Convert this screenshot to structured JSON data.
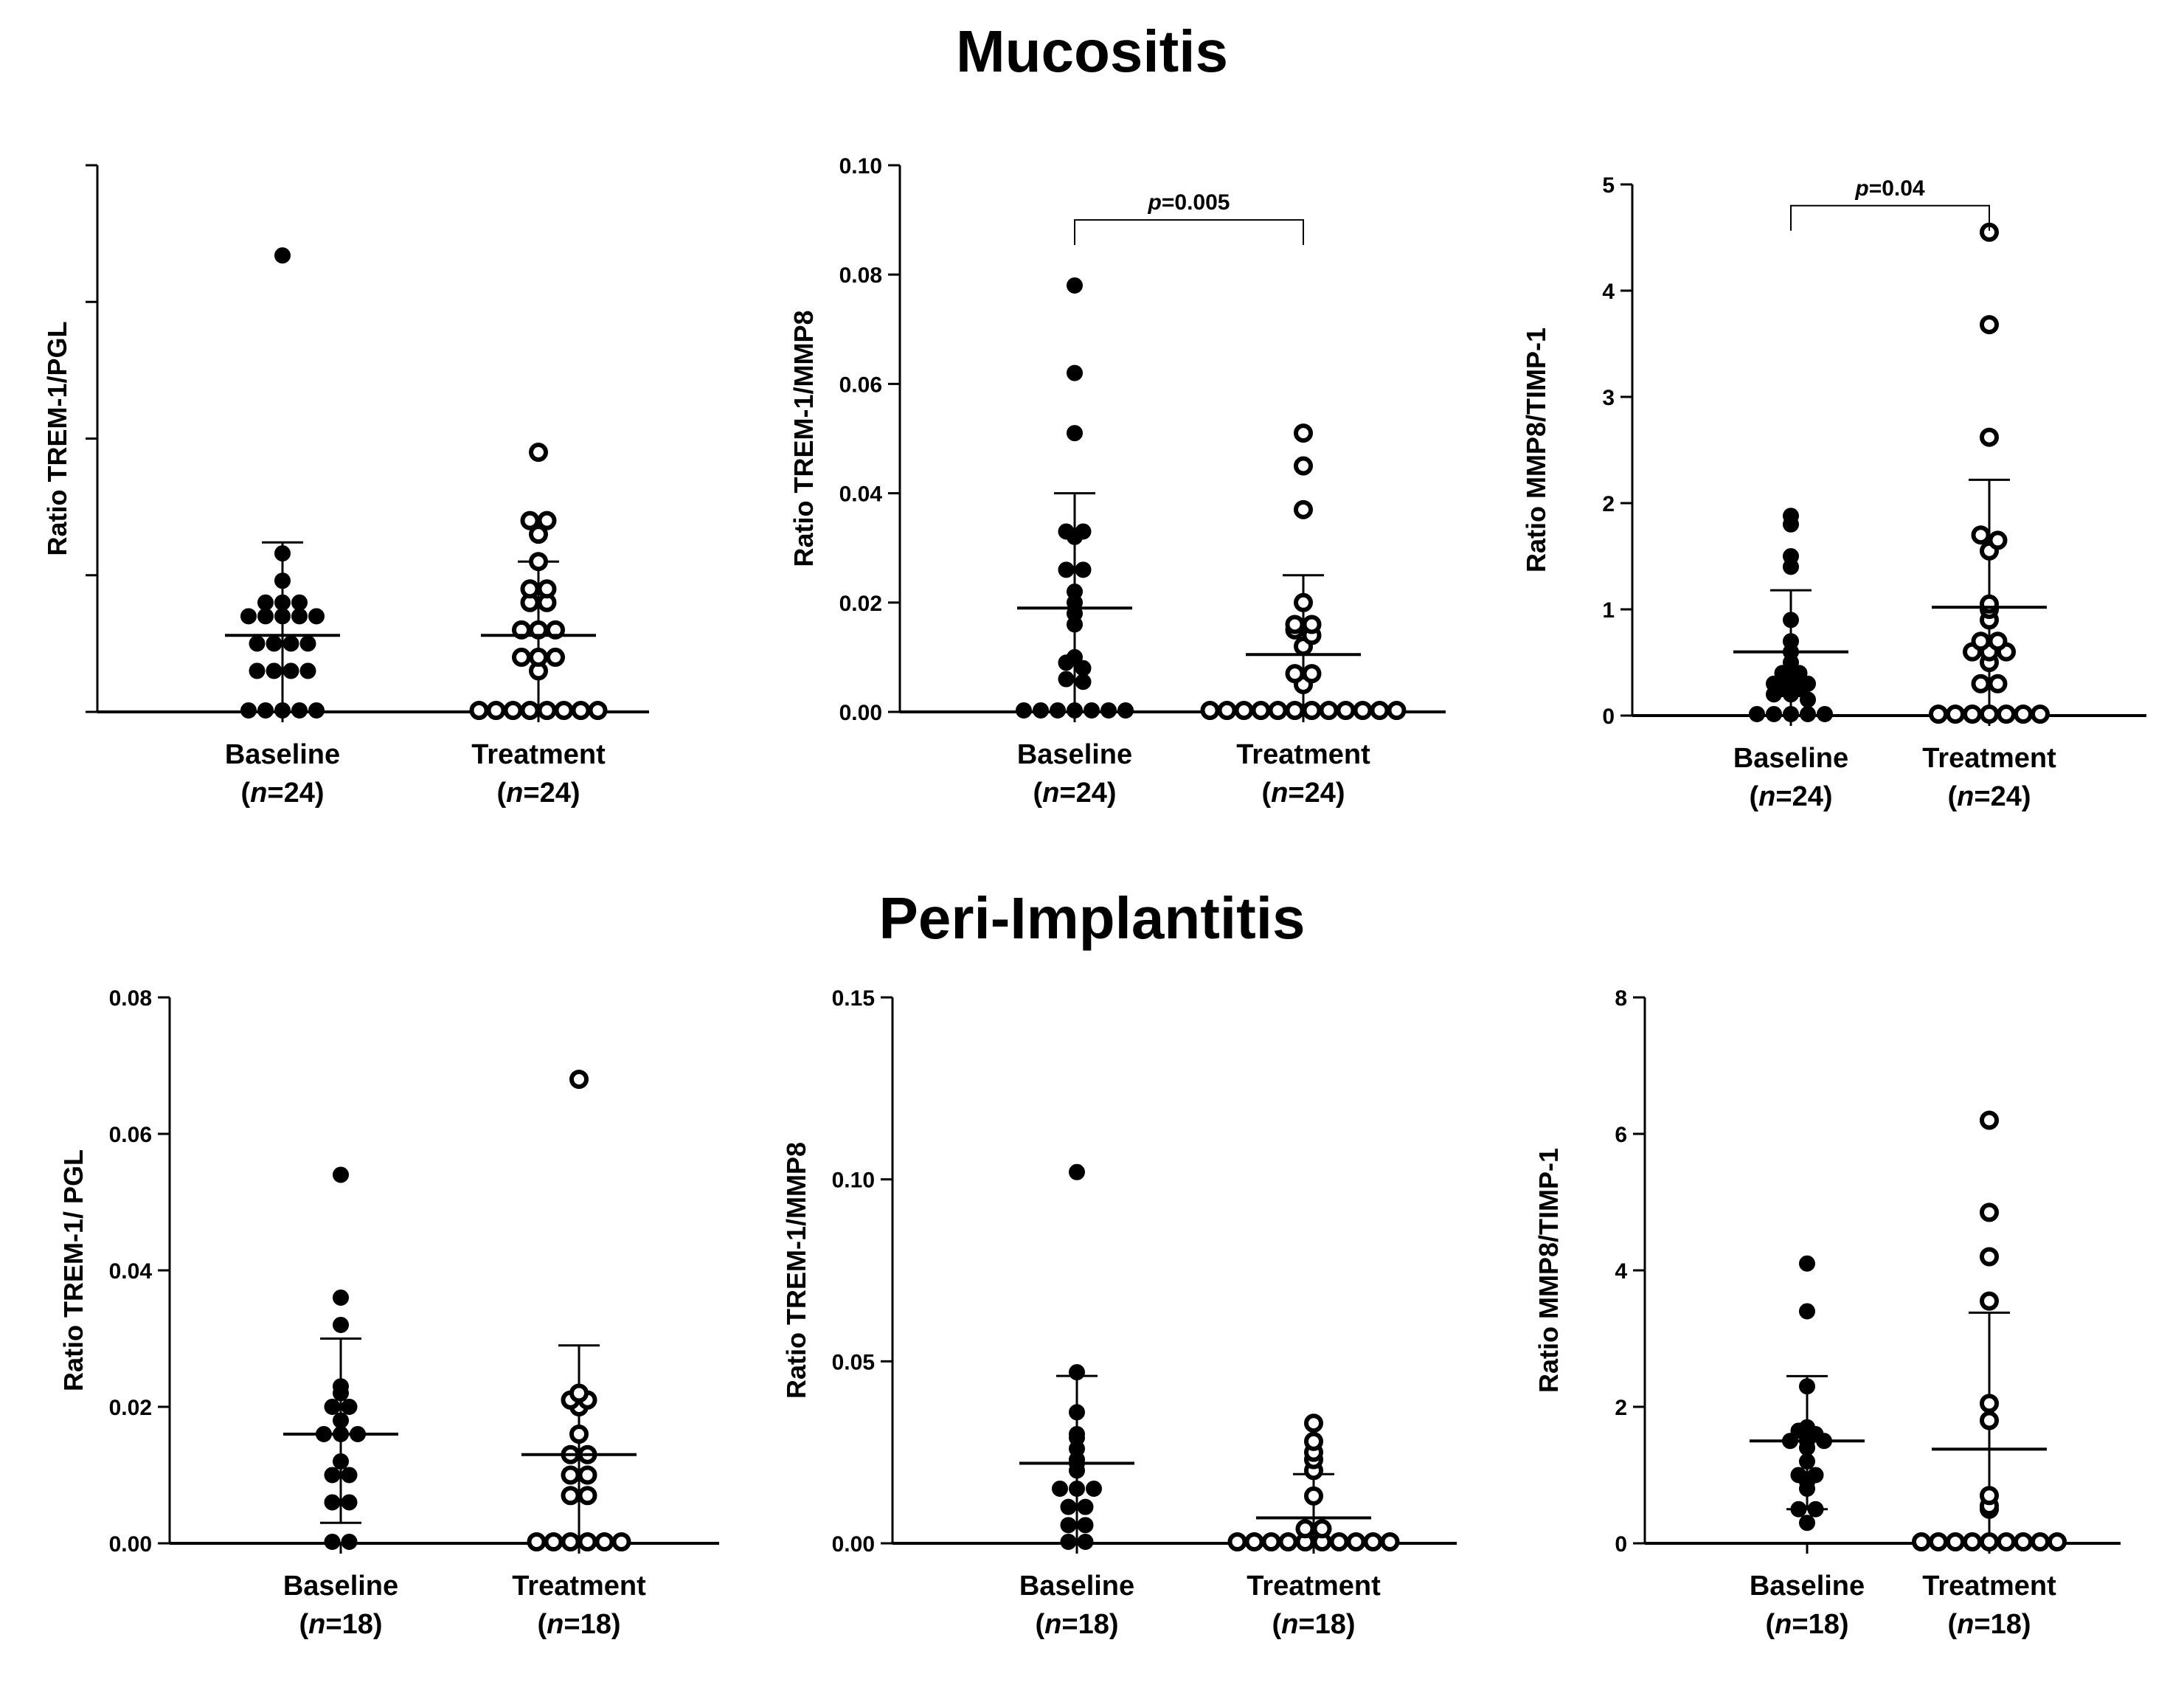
{
  "sections": {
    "top_title": "Mucositis",
    "bottom_title": "Peri-Implantitis"
  },
  "chart_data": [
    {
      "id": "p1",
      "type": "scatter",
      "section": "Mucositis",
      "ylabel": "Ratio TREM-1/PGL",
      "ylim": [
        0,
        0.2
      ],
      "yticks": [
        0,
        0.05,
        0.1,
        0.15,
        0.2
      ],
      "ytick_labels": false,
      "groups": [
        {
          "name": "Baseline",
          "n_label": "(n=24)",
          "n": "24",
          "filled": true,
          "mean": 0.028,
          "sd_low": 0.0,
          "sd_high": 0.062,
          "values": [
            0.167,
            0.058,
            0.048,
            0.04,
            0.04,
            0.04,
            0.035,
            0.035,
            0.035,
            0.035,
            0.035,
            0.025,
            0.025,
            0.025,
            0.025,
            0.015,
            0.015,
            0.015,
            0.015,
            0.0,
            0.0,
            0.0,
            0.0,
            0.0
          ]
        },
        {
          "name": "Treatment",
          "n_label": "(n=24)",
          "n": "24",
          "filled": false,
          "mean": 0.028,
          "sd_low": 0.0,
          "sd_high": 0.055,
          "values": [
            0.095,
            0.07,
            0.07,
            0.065,
            0.055,
            0.045,
            0.045,
            0.04,
            0.04,
            0.03,
            0.03,
            0.03,
            0.02,
            0.02,
            0.02,
            0.015,
            0.0,
            0.0,
            0.0,
            0.0,
            0.0,
            0.0,
            0.0,
            0.0
          ]
        }
      ],
      "significance": null
    },
    {
      "id": "p2",
      "type": "scatter",
      "section": "Mucositis",
      "ylabel": "Ratio TREM-1/MMP8",
      "ylim": [
        0,
        0.1
      ],
      "yticks": [
        0.0,
        0.02,
        0.04,
        0.06,
        0.08,
        0.1
      ],
      "ytick_labels": [
        "0.00",
        "0.02",
        "0.04",
        "0.06",
        "0.08",
        "0.10"
      ],
      "groups": [
        {
          "name": "Baseline",
          "n_label": "(n=24)",
          "n": "24",
          "filled": true,
          "mean": 0.019,
          "sd_low": 0.0,
          "sd_high": 0.04,
          "values": [
            0.078,
            0.062,
            0.051,
            0.033,
            0.033,
            0.032,
            0.026,
            0.026,
            0.022,
            0.02,
            0.018,
            0.016,
            0.01,
            0.009,
            0.008,
            0.006,
            0.0055,
            0.0,
            0.0,
            0.0,
            0.0,
            0.0,
            0.0,
            0.0
          ]
        },
        {
          "name": "Treatment",
          "n_label": "(n=24)",
          "n": "24",
          "filled": false,
          "mean": 0.0105,
          "sd_low": 0.0,
          "sd_high": 0.025,
          "values": [
            0.051,
            0.045,
            0.037,
            0.02,
            0.016,
            0.016,
            0.015,
            0.014,
            0.012,
            0.007,
            0.007,
            0.005,
            0.0,
            0.0,
            0.0,
            0.0,
            0.0,
            0.0,
            0.0,
            0.0,
            0.0,
            0.0,
            0.0,
            0.0
          ]
        }
      ],
      "significance": {
        "p_prefix": "p",
        "p_value": "=0.005",
        "y": 0.09
      }
    },
    {
      "id": "p3",
      "type": "scatter",
      "section": "Mucositis",
      "ylabel": "Ratio MMP8/TIMP-1",
      "ylim": [
        0,
        5
      ],
      "yticks": [
        0,
        1,
        2,
        3,
        4,
        5
      ],
      "ytick_labels": [
        "0",
        "1",
        "2",
        "3",
        "4",
        "5"
      ],
      "groups": [
        {
          "name": "Baseline",
          "n_label": "(n=24)",
          "n": "24",
          "filled": true,
          "mean": 0.6,
          "sd_low": 0.0,
          "sd_high": 1.18,
          "values": [
            1.88,
            1.8,
            1.5,
            1.4,
            0.9,
            0.7,
            0.6,
            0.5,
            0.4,
            0.4,
            0.35,
            0.3,
            0.3,
            0.3,
            0.25,
            0.25,
            0.2,
            0.2,
            0.15,
            0.0,
            0.0,
            0.0,
            0.0,
            0.0
          ]
        },
        {
          "name": "Treatment",
          "n_label": "(n=24)",
          "n": "24",
          "filled": false,
          "mean": 1.02,
          "sd_low": 0.0,
          "sd_high": 2.22,
          "values": [
            4.55,
            3.68,
            2.62,
            1.7,
            1.65,
            1.55,
            1.05,
            1.0,
            0.9,
            0.7,
            0.7,
            0.6,
            0.6,
            0.6,
            0.5,
            0.3,
            0.3,
            0.0,
            0.0,
            0.0,
            0.0,
            0.0,
            0.0,
            0.0
          ]
        }
      ],
      "significance": {
        "p_prefix": "p",
        "p_value": "=0.04",
        "y": 4.8
      }
    },
    {
      "id": "p4",
      "type": "scatter",
      "section": "Peri-Implantitis",
      "ylabel": "Ratio TREM-1/ PGL",
      "ylim": [
        0,
        0.08
      ],
      "yticks": [
        0.0,
        0.02,
        0.04,
        0.06,
        0.08
      ],
      "ytick_labels": [
        "0.00",
        "0.02",
        "0.04",
        "0.06",
        "0.08"
      ],
      "groups": [
        {
          "name": "Baseline",
          "n_label": "(n=18)",
          "n": "18",
          "filled": true,
          "mean": 0.016,
          "sd_low": 0.003,
          "sd_high": 0.03,
          "values": [
            0.054,
            0.036,
            0.032,
            0.023,
            0.022,
            0.02,
            0.02,
            0.018,
            0.016,
            0.016,
            0.016,
            0.012,
            0.01,
            0.01,
            0.006,
            0.006,
            0.0,
            0.0
          ]
        },
        {
          "name": "Treatment",
          "n_label": "(n=18)",
          "n": "18",
          "filled": false,
          "mean": 0.013,
          "sd_low": 0.0,
          "sd_high": 0.029,
          "values": [
            0.068,
            0.022,
            0.021,
            0.021,
            0.02,
            0.016,
            0.013,
            0.013,
            0.01,
            0.01,
            0.007,
            0.007,
            0.0,
            0.0,
            0.0,
            0.0,
            0.0,
            0.0
          ]
        }
      ],
      "significance": null
    },
    {
      "id": "p5",
      "type": "scatter",
      "section": "Peri-Implantitis",
      "ylabel": "Ratio TREM-1/MMP8",
      "ylim": [
        0,
        0.15
      ],
      "yticks": [
        0.0,
        0.05,
        0.1,
        0.15
      ],
      "ytick_labels": [
        "0.00",
        "0.05",
        "0.10",
        "0.15"
      ],
      "groups": [
        {
          "name": "Baseline",
          "n_label": "(n=18)",
          "n": "18",
          "filled": true,
          "mean": 0.022,
          "sd_low": 0.0,
          "sd_high": 0.046,
          "values": [
            0.102,
            0.047,
            0.036,
            0.03,
            0.029,
            0.026,
            0.023,
            0.022,
            0.02,
            0.015,
            0.015,
            0.015,
            0.01,
            0.01,
            0.005,
            0.005,
            0.0,
            0.0
          ]
        },
        {
          "name": "Treatment",
          "n_label": "(n=18)",
          "n": "18",
          "filled": false,
          "mean": 0.007,
          "sd_low": 0.0,
          "sd_high": 0.019,
          "values": [
            0.033,
            0.028,
            0.025,
            0.023,
            0.02,
            0.013,
            0.004,
            0.004,
            0.0,
            0.0,
            0.0,
            0.0,
            0.0,
            0.0,
            0.0,
            0.0,
            0.0,
            0.0
          ]
        }
      ],
      "significance": null
    },
    {
      "id": "p6",
      "type": "scatter",
      "section": "Peri-Implantitis",
      "ylabel": "Ratio MMP8/TIMP-1",
      "ylim": [
        0,
        8
      ],
      "yticks": [
        0,
        2,
        4,
        6,
        8
      ],
      "ytick_labels": [
        "0",
        "2",
        "4",
        "6",
        "8"
      ],
      "groups": [
        {
          "name": "Baseline",
          "n_label": "(n=18)",
          "n": "18",
          "filled": true,
          "mean": 1.5,
          "sd_low": 0.5,
          "sd_high": 2.45,
          "values": [
            4.1,
            3.4,
            2.3,
            1.7,
            1.65,
            1.6,
            1.5,
            1.5,
            1.5,
            1.4,
            1.2,
            1.0,
            1.0,
            0.9,
            0.8,
            0.5,
            0.5,
            0.3
          ]
        },
        {
          "name": "Treatment",
          "n_label": "(n=18)",
          "n": "18",
          "filled": false,
          "mean": 1.38,
          "sd_low": 0.0,
          "sd_high": 3.38,
          "values": [
            6.2,
            4.85,
            4.2,
            3.55,
            2.05,
            1.8,
            0.7,
            0.55,
            0.5,
            0.0,
            0.0,
            0.0,
            0.0,
            0.0,
            0.0,
            0.0,
            0.0,
            0.0
          ]
        }
      ],
      "significance": null
    }
  ]
}
